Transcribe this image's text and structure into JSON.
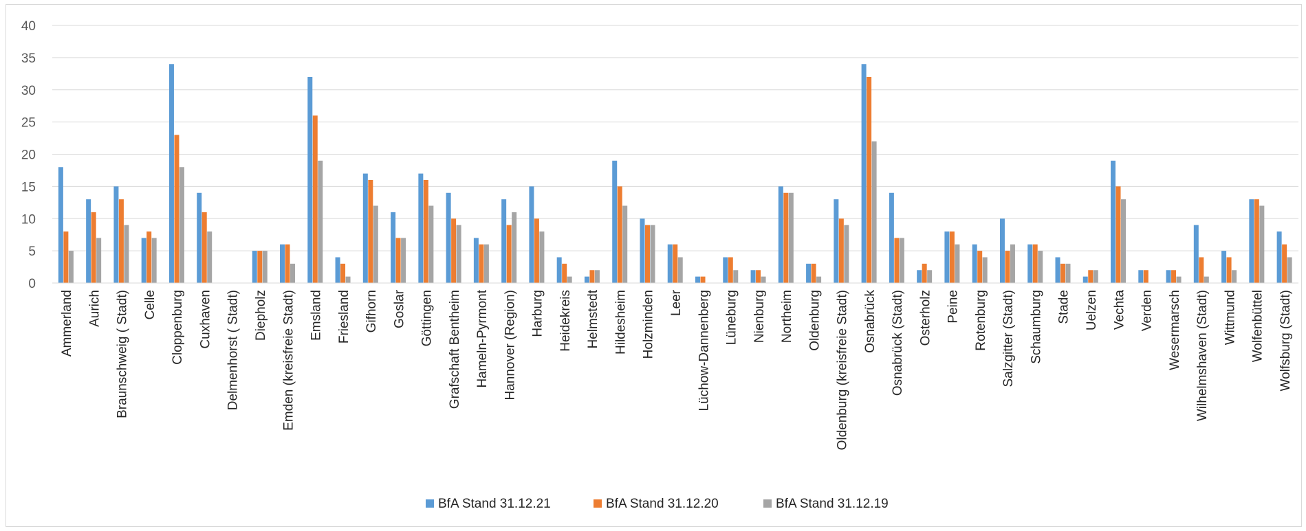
{
  "chart_data": {
    "type": "bar",
    "title": "",
    "xlabel": "",
    "ylabel": "",
    "ylim": [
      0,
      40
    ],
    "yticks": [
      0,
      5,
      10,
      15,
      20,
      25,
      30,
      35,
      40
    ],
    "grid": true,
    "legend_position": "bottom",
    "categories": [
      "Ammerland",
      "Aurich",
      "Braunschweig ( Stadt)",
      "Celle",
      "Cloppenburg",
      "Cuxhaven",
      "Delmenhorst ( Stadt)",
      "Diepholz",
      "Emden (kreisfreie Stadt)",
      "Emsland",
      "Friesland",
      "Gifhorn",
      "Goslar",
      "Göttingen",
      "Grafschaft Bentheim",
      "Hameln-Pyrmont",
      "Hannover (Region)",
      "Harburg",
      "Heidekreis",
      "Helmstedt",
      "Hildesheim",
      "Holzminden",
      "Leer",
      "Lüchow-Dannenberg",
      "Lüneburg",
      "Nienburg",
      "Northeim",
      "Oldenburg",
      "Oldenburg (kreisfreie Stadt)",
      "Osnabrück",
      "Osnabrück (Stadt)",
      "Osterholz",
      "Peine",
      "Rotenburg",
      "Salzgitter (Stadt)",
      "Schaumburg",
      "Stade",
      "Uelzen",
      "Vechta",
      "Verden",
      "Wesermarsch",
      "Wilhelmshaven (Stadt)",
      "Wittmund",
      "Wolfenbüttel",
      "Wolfsburg (Stadt)"
    ],
    "series": [
      {
        "name": "BfA Stand 31.12.21",
        "color": "#5b9bd5",
        "values": [
          18,
          13,
          15,
          7,
          34,
          14,
          0,
          5,
          6,
          32,
          4,
          17,
          11,
          17,
          14,
          7,
          13,
          15,
          4,
          1,
          19,
          10,
          6,
          1,
          4,
          2,
          15,
          3,
          13,
          34,
          14,
          2,
          8,
          6,
          10,
          6,
          4,
          1,
          19,
          2,
          2,
          9,
          5,
          13,
          8
        ]
      },
      {
        "name": "BfA Stand 31.12.20",
        "color": "#ed7d31",
        "values": [
          8,
          11,
          13,
          8,
          23,
          11,
          0,
          5,
          6,
          26,
          3,
          16,
          7,
          16,
          10,
          6,
          9,
          10,
          3,
          2,
          15,
          9,
          6,
          1,
          4,
          2,
          14,
          3,
          10,
          32,
          7,
          3,
          8,
          5,
          5,
          6,
          3,
          2,
          15,
          2,
          2,
          4,
          4,
          13,
          6
        ]
      },
      {
        "name": "BfA Stand 31.12.19",
        "color": "#a5a5a5",
        "values": [
          5,
          7,
          9,
          7,
          18,
          8,
          0,
          5,
          3,
          19,
          1,
          12,
          7,
          12,
          9,
          6,
          11,
          8,
          1,
          2,
          12,
          9,
          4,
          0,
          2,
          1,
          14,
          1,
          9,
          22,
          7,
          2,
          6,
          4,
          6,
          5,
          3,
          2,
          13,
          0,
          1,
          1,
          2,
          12,
          4
        ]
      }
    ]
  }
}
